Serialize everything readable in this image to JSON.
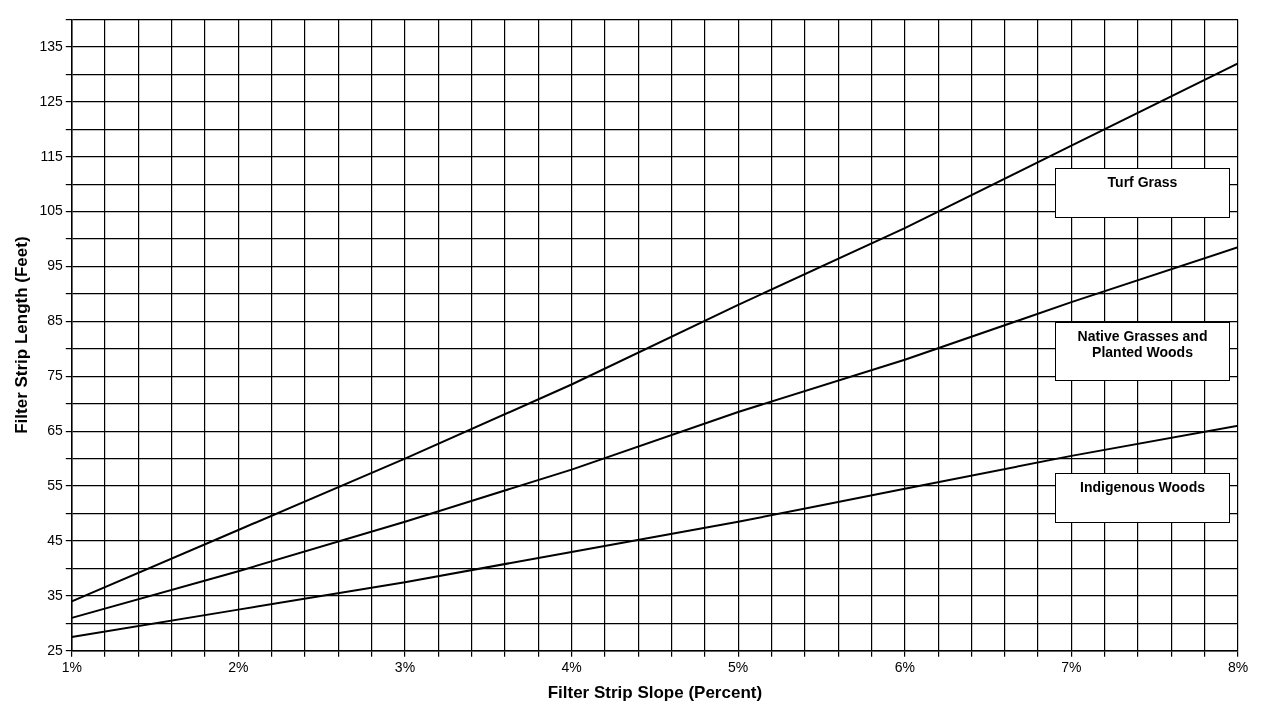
{
  "chart_data": {
    "type": "line",
    "xlabel": "Filter Strip Slope (Percent)",
    "ylabel": "Filter Strip Length (Feet)",
    "x": [
      1,
      2,
      3,
      4,
      5,
      6,
      7,
      8
    ],
    "series": [
      {
        "name": "Turf Grass",
        "color": "#000000",
        "values": [
          34,
          47,
          60,
          73.5,
          88,
          102,
          117,
          132
        ]
      },
      {
        "name": "Native Grasses and Planted Woods",
        "color": "#000000",
        "values": [
          31,
          39.5,
          48.5,
          58,
          68.5,
          78,
          88.5,
          98.5
        ]
      },
      {
        "name": "Indigenous Woods",
        "color": "#000000",
        "values": [
          27.5,
          32.5,
          37.5,
          43,
          48.5,
          54.5,
          60.5,
          66
        ]
      }
    ],
    "xlim": [
      1,
      8
    ],
    "xticks": [
      {
        "value": 1,
        "label": "1%"
      },
      {
        "value": 1.2,
        "label": null
      },
      {
        "value": 1.4,
        "label": null
      },
      {
        "value": 1.6,
        "label": null
      },
      {
        "value": 1.8,
        "label": null
      },
      {
        "value": 2,
        "label": "2%"
      },
      {
        "value": 2.2,
        "label": null
      },
      {
        "value": 2.4,
        "label": null
      },
      {
        "value": 2.6,
        "label": null
      },
      {
        "value": 2.8,
        "label": null
      },
      {
        "value": 3,
        "label": "3%"
      },
      {
        "value": 3.2,
        "label": null
      },
      {
        "value": 3.4,
        "label": null
      },
      {
        "value": 3.6,
        "label": null
      },
      {
        "value": 3.8,
        "label": null
      },
      {
        "value": 4,
        "label": "4%"
      },
      {
        "value": 4.2,
        "label": null
      },
      {
        "value": 4.4,
        "label": null
      },
      {
        "value": 4.6,
        "label": null
      },
      {
        "value": 4.8,
        "label": null
      },
      {
        "value": 5,
        "label": "5%"
      },
      {
        "value": 5.2,
        "label": null
      },
      {
        "value": 5.4,
        "label": null
      },
      {
        "value": 5.6,
        "label": null
      },
      {
        "value": 5.8,
        "label": null
      },
      {
        "value": 6,
        "label": "6%"
      },
      {
        "value": 6.2,
        "label": null
      },
      {
        "value": 6.4,
        "label": null
      },
      {
        "value": 6.6,
        "label": null
      },
      {
        "value": 6.8,
        "label": null
      },
      {
        "value": 7,
        "label": "7%"
      },
      {
        "value": 7.2,
        "label": null
      },
      {
        "value": 7.4,
        "label": null
      },
      {
        "value": 7.6,
        "label": null
      },
      {
        "value": 7.8,
        "label": null
      },
      {
        "value": 8,
        "label": "8%"
      }
    ],
    "ylim": [
      25,
      140
    ],
    "yticks": [
      25,
      {
        "value": 30,
        "label": null
      },
      35,
      {
        "value": 40,
        "label": null
      },
      45,
      {
        "value": 50,
        "label": null
      },
      55,
      {
        "value": 60,
        "label": null
      },
      65,
      {
        "value": 70,
        "label": null
      },
      75,
      {
        "value": 80,
        "label": null
      },
      85,
      {
        "value": 90,
        "label": null
      },
      95,
      {
        "value": 100,
        "label": null
      },
      105,
      {
        "value": 110,
        "label": null
      },
      115,
      {
        "value": 120,
        "label": null
      },
      125,
      {
        "value": 130,
        "label": null
      },
      135,
      {
        "value": 140,
        "label": null
      }
    ],
    "grid": true,
    "legend": false,
    "marker": "none",
    "line_style": "solid"
  }
}
